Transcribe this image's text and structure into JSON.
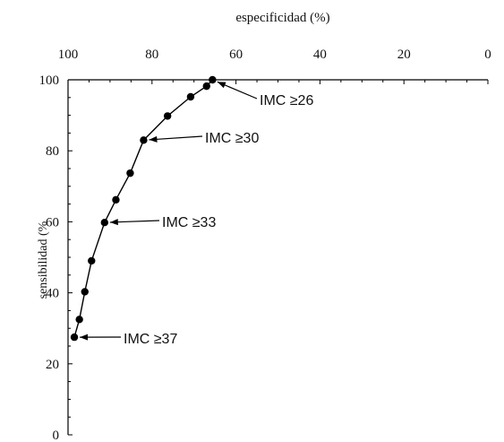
{
  "chart_data": {
    "type": "line",
    "title": "",
    "xlabel": "especificidad (%)",
    "ylabel": "sensibilidad (%",
    "xlim": [
      100,
      0
    ],
    "ylim": [
      0,
      100
    ],
    "x_ticks": [
      "100",
      "80",
      "60",
      "40",
      "20",
      "0"
    ],
    "y_ticks": [
      "100",
      "80",
      "60",
      "40",
      "20",
      "0"
    ],
    "x_axis_position": "top",
    "x_reversed": true,
    "grid": false,
    "series": [
      {
        "x": [
          98.5,
          97.3,
          96.0,
          94.4,
          91.3,
          88.6,
          85.2,
          82.0,
          76.3,
          70.8,
          67.0,
          65.6
        ],
        "y": [
          27.5,
          32.5,
          40.3,
          49.0,
          59.8,
          66.2,
          73.7,
          83.0,
          89.8,
          95.2,
          98.2,
          100.0
        ]
      }
    ],
    "annotations": [
      {
        "label": "IMC ≥26",
        "x": 65.6,
        "y": 100.0
      },
      {
        "label": "IMC ≥30",
        "x": 82.0,
        "y": 83.0
      },
      {
        "label": "IMC ≥33",
        "x": 91.3,
        "y": 59.8
      },
      {
        "label": "IMC ≥37",
        "x": 98.5,
        "y": 27.5
      }
    ]
  }
}
